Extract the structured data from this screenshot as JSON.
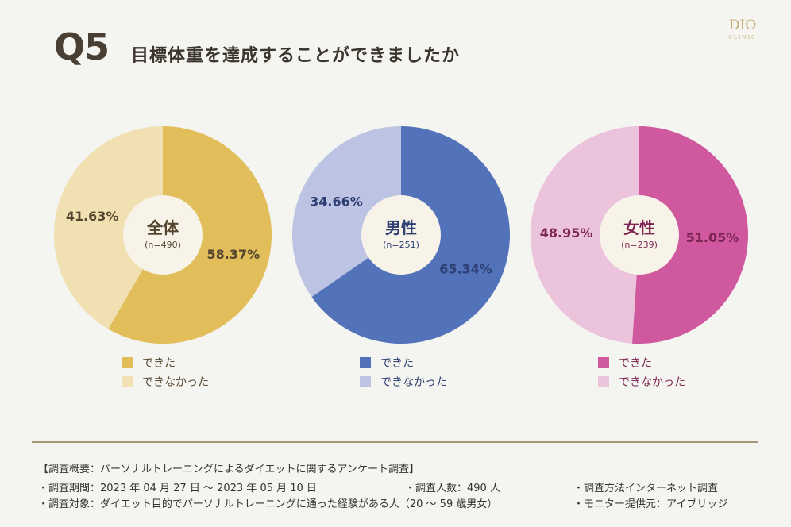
{
  "header": {
    "q_number": "Q5",
    "title": "目標体重を達成することができましたか",
    "logo_text": "DIO",
    "logo_sub": "CLINIC"
  },
  "chart_data": [
    {
      "type": "pie",
      "center_label": "全体",
      "center_sub": "(n=490)",
      "categories": [
        "できた",
        "できなかった"
      ],
      "values": [
        58.37,
        41.63
      ],
      "value_labels": [
        "58.37%",
        "41.63%"
      ],
      "colors": [
        "#e2be5a",
        "#f1e0b2"
      ],
      "label_color": "#54452e"
    },
    {
      "type": "pie",
      "center_label": "男性",
      "center_sub": "(n=251)",
      "categories": [
        "できた",
        "できなかった"
      ],
      "values": [
        65.34,
        34.66
      ],
      "value_labels": [
        "65.34%",
        "34.66%"
      ],
      "colors": [
        "#5273ba",
        "#bcc3e3"
      ],
      "label_color": "#2d3e72"
    },
    {
      "type": "pie",
      "center_label": "女性",
      "center_sub": "(n=239)",
      "categories": [
        "できた",
        "できなかった"
      ],
      "values": [
        51.05,
        48.95
      ],
      "value_labels": [
        "51.05%",
        "48.95%"
      ],
      "colors": [
        "#d0589e",
        "#ebc3dc"
      ],
      "label_color": "#7e2553"
    }
  ],
  "legends": [
    {
      "done": "できた",
      "not_done": "できなかった"
    },
    {
      "done": "できた",
      "not_done": "できなかった"
    },
    {
      "done": "できた",
      "not_done": "できなかった"
    }
  ],
  "footer": {
    "summary_title": "【調査概要：パーソナルトレーニングによるダイエットに関するアンケート調査】",
    "period": "・調査期間：2023 年 04 月 27 日 ～ 2023 年 05 月 10 日",
    "respondents": "・調査人数：490 人",
    "method": "・調査方法インターネット調査",
    "target": "・調査対象：ダイエット目的でパーソナルトレーニングに通った経験がある人（20 ～ 59 歳男女）",
    "provider": "・モニター提供元：アイブリッジ"
  }
}
